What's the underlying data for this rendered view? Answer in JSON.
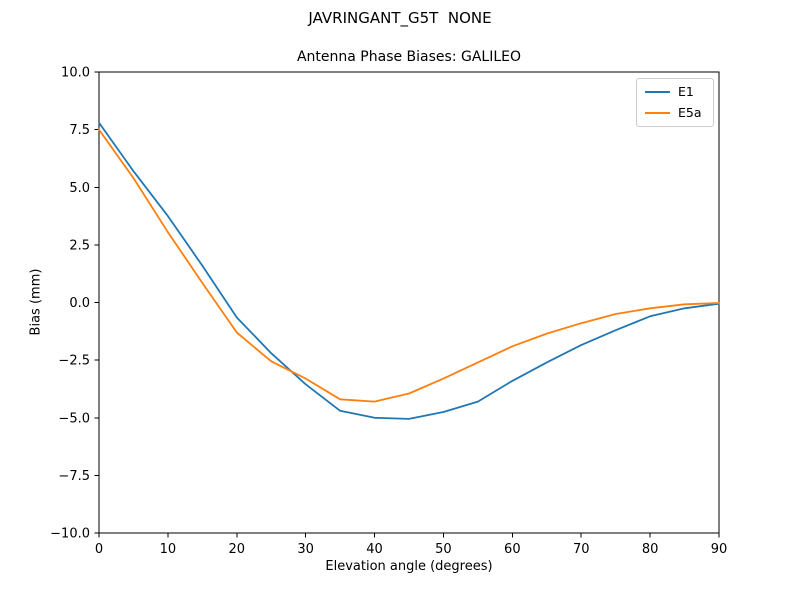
{
  "figure": {
    "suptitle": "JAVRINGANT_G5T  NONE",
    "title": "Antenna Phase Biases: GALILEO"
  },
  "chart_data": {
    "type": "line",
    "suptitle": "JAVRINGANT_G5T  NONE",
    "title": "Antenna Phase Biases: GALILEO",
    "xlabel": "Elevation angle (degrees)",
    "ylabel": "Bias (mm)",
    "xlim": [
      0,
      90
    ],
    "ylim": [
      -10,
      10
    ],
    "grid": false,
    "legend_position": "upper right",
    "xticks": [
      0,
      10,
      20,
      30,
      40,
      50,
      60,
      70,
      80,
      90
    ],
    "xtick_labels": [
      "0",
      "10",
      "20",
      "30",
      "40",
      "50",
      "60",
      "70",
      "80",
      "90"
    ],
    "yticks": [
      -10,
      -7.5,
      -5,
      -2.5,
      0,
      2.5,
      5,
      7.5,
      10
    ],
    "ytick_labels": [
      "−10.0",
      "−7.5",
      "−5.0",
      "−2.5",
      "0.0",
      "2.5",
      "5.0",
      "7.5",
      "10.0"
    ],
    "x": [
      0,
      5,
      10,
      15,
      20,
      25,
      30,
      35,
      40,
      45,
      50,
      55,
      60,
      65,
      70,
      75,
      80,
      85,
      90
    ],
    "series": [
      {
        "name": "E1",
        "color": "#1f77b4",
        "values": [
          7.8,
          5.7,
          3.75,
          1.6,
          -0.65,
          -2.2,
          -3.55,
          -4.7,
          -5.0,
          -5.05,
          -4.75,
          -4.3,
          -3.4,
          -2.6,
          -1.85,
          -1.2,
          -0.6,
          -0.25,
          -0.05
        ]
      },
      {
        "name": "E5a",
        "color": "#ff7f0e",
        "values": [
          7.5,
          5.4,
          3.05,
          0.85,
          -1.3,
          -2.55,
          -3.3,
          -4.2,
          -4.3,
          -3.95,
          -3.3,
          -2.6,
          -1.9,
          -1.35,
          -0.9,
          -0.5,
          -0.25,
          -0.08,
          -0.02
        ]
      }
    ],
    "axis_color": "#000000",
    "background_color": "#ffffff"
  }
}
